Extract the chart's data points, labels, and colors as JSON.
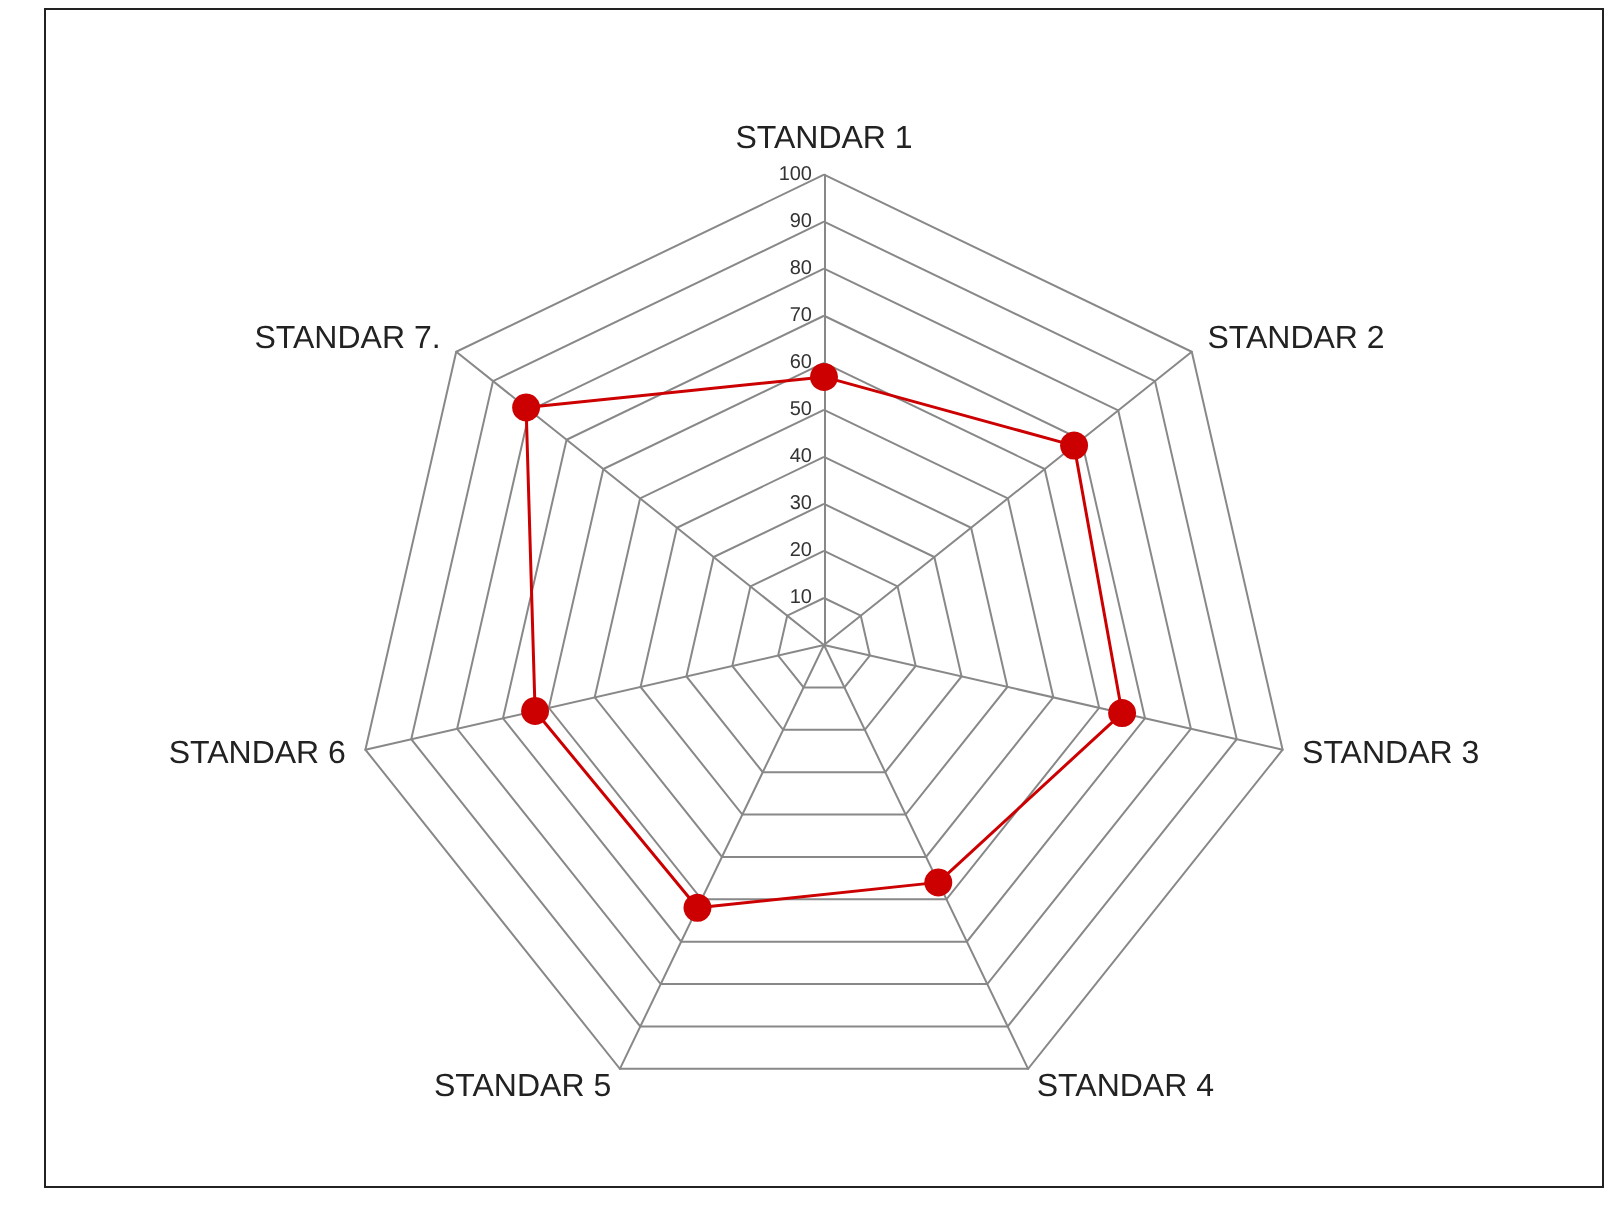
{
  "chart_data": {
    "type": "radar",
    "categories": [
      "STANDAR 1",
      "STANDAR 2",
      "STANDAR 3",
      "STANDAR 4",
      "STANDAR 5",
      "STANDAR 6",
      "STANDAR 7."
    ],
    "series": [
      {
        "color": "#cc0000",
        "values": [
          57,
          68,
          65,
          56,
          62,
          63,
          81
        ]
      }
    ],
    "ylim": [
      0,
      100
    ],
    "yticks": [
      10,
      20,
      30,
      40,
      50,
      60,
      70,
      80,
      90,
      100
    ],
    "marker": "circle",
    "line_style": "solid",
    "legend": false
  }
}
